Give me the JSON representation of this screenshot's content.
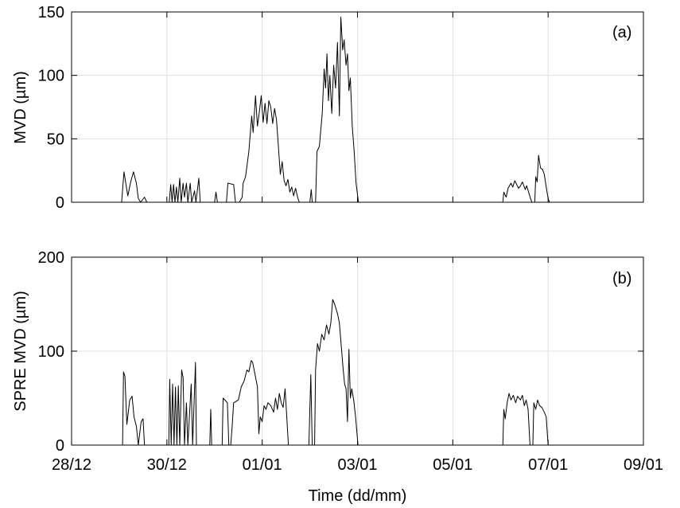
{
  "chart_data": [
    {
      "type": "line",
      "panel_label": "(a)",
      "ylabel": "MVD (µm)",
      "ylim": [
        0,
        150
      ],
      "yticks": [
        0,
        50,
        100,
        150
      ],
      "xlim": [
        "28/12",
        "09/01"
      ],
      "xticks": [
        "28/12",
        "30/12",
        "01/01",
        "03/01",
        "05/01",
        "07/01",
        "09/01"
      ],
      "grid": true,
      "series": [
        {
          "x_unit": "days since 28/12 00:00",
          "points": [
            [
              0.0,
              0
            ],
            [
              1.05,
              0
            ],
            [
              1.1,
              24
            ],
            [
              1.18,
              5
            ],
            [
              1.24,
              16
            ],
            [
              1.3,
              24
            ],
            [
              1.36,
              15
            ],
            [
              1.4,
              3
            ],
            [
              1.45,
              0
            ],
            [
              1.53,
              4
            ],
            [
              1.58,
              0
            ],
            [
              2.05,
              0
            ],
            [
              2.08,
              14
            ],
            [
              2.11,
              0
            ],
            [
              2.14,
              14
            ],
            [
              2.17,
              0
            ],
            [
              2.2,
              12
            ],
            [
              2.23,
              0
            ],
            [
              2.27,
              19
            ],
            [
              2.3,
              0
            ],
            [
              2.34,
              15
            ],
            [
              2.37,
              4
            ],
            [
              2.41,
              15
            ],
            [
              2.44,
              0
            ],
            [
              2.49,
              15
            ],
            [
              2.52,
              0
            ],
            [
              2.58,
              9
            ],
            [
              2.61,
              0
            ],
            [
              2.67,
              19
            ],
            [
              2.7,
              0
            ],
            [
              3.0,
              0
            ],
            [
              3.03,
              8
            ],
            [
              3.06,
              0
            ],
            [
              3.25,
              0
            ],
            [
              3.28,
              15
            ],
            [
              3.4,
              14
            ],
            [
              3.44,
              0
            ],
            [
              3.52,
              0
            ],
            [
              3.58,
              4
            ],
            [
              3.6,
              15
            ],
            [
              3.65,
              20
            ],
            [
              3.72,
              40
            ],
            [
              3.78,
              68
            ],
            [
              3.81,
              55
            ],
            [
              3.86,
              84
            ],
            [
              3.9,
              60
            ],
            [
              3.94,
              71
            ],
            [
              3.98,
              84
            ],
            [
              4.02,
              63
            ],
            [
              4.06,
              78
            ],
            [
              4.1,
              62
            ],
            [
              4.14,
              80
            ],
            [
              4.18,
              75
            ],
            [
              4.22,
              62
            ],
            [
              4.26,
              74
            ],
            [
              4.3,
              65
            ],
            [
              4.34,
              44
            ],
            [
              4.38,
              22
            ],
            [
              4.42,
              32
            ],
            [
              4.46,
              17
            ],
            [
              4.5,
              13
            ],
            [
              4.54,
              18
            ],
            [
              4.58,
              8
            ],
            [
              4.62,
              12
            ],
            [
              4.66,
              5
            ],
            [
              4.7,
              11
            ],
            [
              4.75,
              3
            ],
            [
              4.78,
              0
            ],
            [
              5.0,
              0
            ],
            [
              5.03,
              10
            ],
            [
              5.05,
              0
            ],
            [
              5.12,
              0
            ],
            [
              5.15,
              40
            ],
            [
              5.2,
              44
            ],
            [
              5.26,
              70
            ],
            [
              5.3,
              105
            ],
            [
              5.33,
              90
            ],
            [
              5.36,
              117
            ],
            [
              5.39,
              80
            ],
            [
              5.42,
              100
            ],
            [
              5.46,
              70
            ],
            [
              5.5,
              108
            ],
            [
              5.54,
              90
            ],
            [
              5.58,
              126
            ],
            [
              5.62,
              68
            ],
            [
              5.65,
              146
            ],
            [
              5.69,
              120
            ],
            [
              5.72,
              128
            ],
            [
              5.76,
              108
            ],
            [
              5.79,
              117
            ],
            [
              5.82,
              88
            ],
            [
              5.85,
              98
            ],
            [
              5.89,
              60
            ],
            [
              5.93,
              40
            ],
            [
              5.97,
              15
            ],
            [
              6.02,
              0
            ],
            [
              9.05,
              0
            ],
            [
              9.07,
              8
            ],
            [
              9.12,
              4
            ],
            [
              9.16,
              11
            ],
            [
              9.22,
              15
            ],
            [
              9.26,
              12
            ],
            [
              9.3,
              17
            ],
            [
              9.34,
              14
            ],
            [
              9.38,
              11
            ],
            [
              9.42,
              13
            ],
            [
              9.46,
              16
            ],
            [
              9.5,
              12
            ],
            [
              9.52,
              10
            ],
            [
              9.55,
              13
            ],
            [
              9.59,
              8
            ],
            [
              9.63,
              3
            ],
            [
              9.66,
              0
            ],
            [
              9.72,
              0
            ],
            [
              9.74,
              20
            ],
            [
              9.77,
              16
            ],
            [
              9.8,
              37
            ],
            [
              9.84,
              27
            ],
            [
              9.88,
              26
            ],
            [
              9.92,
              22
            ],
            [
              9.96,
              12
            ],
            [
              10.0,
              3
            ],
            [
              10.03,
              0
            ],
            [
              11.0,
              0
            ]
          ]
        }
      ]
    },
    {
      "type": "line",
      "panel_label": "(b)",
      "ylabel": "SPRE MVD (µm)",
      "xlabel": "Time (dd/mm)",
      "ylim": [
        0,
        200
      ],
      "yticks": [
        0,
        100,
        200
      ],
      "xlim": [
        "28/12",
        "09/01"
      ],
      "xticks": [
        "28/12",
        "30/12",
        "01/01",
        "03/01",
        "05/01",
        "07/01",
        "09/01"
      ],
      "grid": true,
      "series": [
        {
          "x_unit": "days since 28/12 00:00",
          "points": [
            [
              0.0,
              0
            ],
            [
              1.07,
              0
            ],
            [
              1.09,
              78
            ],
            [
              1.12,
              73
            ],
            [
              1.16,
              22
            ],
            [
              1.22,
              48
            ],
            [
              1.27,
              52
            ],
            [
              1.31,
              30
            ],
            [
              1.36,
              20
            ],
            [
              1.4,
              0
            ],
            [
              1.46,
              25
            ],
            [
              1.5,
              28
            ],
            [
              1.53,
              0
            ],
            [
              2.04,
              0
            ],
            [
              2.06,
              70
            ],
            [
              2.09,
              0
            ],
            [
              2.12,
              65
            ],
            [
              2.15,
              0
            ],
            [
              2.18,
              62
            ],
            [
              2.21,
              0
            ],
            [
              2.24,
              63
            ],
            [
              2.27,
              0
            ],
            [
              2.31,
              80
            ],
            [
              2.34,
              72
            ],
            [
              2.37,
              0
            ],
            [
              2.41,
              45
            ],
            [
              2.44,
              0
            ],
            [
              2.51,
              65
            ],
            [
              2.54,
              0
            ],
            [
              2.6,
              88
            ],
            [
              2.62,
              0
            ],
            [
              2.9,
              0
            ],
            [
              2.92,
              38
            ],
            [
              2.94,
              0
            ],
            [
              3.16,
              0
            ],
            [
              3.18,
              50
            ],
            [
              3.27,
              45
            ],
            [
              3.3,
              0
            ],
            [
              3.34,
              0
            ],
            [
              3.37,
              20
            ],
            [
              3.4,
              45
            ],
            [
              3.5,
              48
            ],
            [
              3.56,
              62
            ],
            [
              3.62,
              68
            ],
            [
              3.68,
              80
            ],
            [
              3.72,
              78
            ],
            [
              3.77,
              90
            ],
            [
              3.8,
              88
            ],
            [
              3.85,
              75
            ],
            [
              3.9,
              62
            ],
            [
              3.93,
              12
            ],
            [
              3.96,
              30
            ],
            [
              4.0,
              25
            ],
            [
              4.04,
              42
            ],
            [
              4.08,
              38
            ],
            [
              4.12,
              45
            ],
            [
              4.18,
              42
            ],
            [
              4.24,
              35
            ],
            [
              4.28,
              50
            ],
            [
              4.32,
              38
            ],
            [
              4.36,
              55
            ],
            [
              4.4,
              45
            ],
            [
              4.44,
              40
            ],
            [
              4.48,
              60
            ],
            [
              4.51,
              35
            ],
            [
              4.55,
              0
            ],
            [
              4.95,
              0
            ],
            [
              4.98,
              0
            ],
            [
              5.02,
              75
            ],
            [
              5.05,
              0
            ],
            [
              5.1,
              0
            ],
            [
              5.12,
              80
            ],
            [
              5.16,
              108
            ],
            [
              5.2,
              100
            ],
            [
              5.25,
              118
            ],
            [
              5.3,
              112
            ],
            [
              5.35,
              128
            ],
            [
              5.4,
              118
            ],
            [
              5.44,
              130
            ],
            [
              5.48,
              155
            ],
            [
              5.52,
              150
            ],
            [
              5.58,
              140
            ],
            [
              5.62,
              130
            ],
            [
              5.66,
              105
            ],
            [
              5.7,
              80
            ],
            [
              5.73,
              65
            ],
            [
              5.76,
              60
            ],
            [
              5.79,
              25
            ],
            [
              5.82,
              102
            ],
            [
              5.85,
              50
            ],
            [
              5.88,
              60
            ],
            [
              5.92,
              48
            ],
            [
              5.96,
              30
            ],
            [
              6.01,
              0
            ],
            [
              9.05,
              0
            ],
            [
              9.07,
              38
            ],
            [
              9.1,
              28
            ],
            [
              9.14,
              45
            ],
            [
              9.18,
              55
            ],
            [
              9.22,
              48
            ],
            [
              9.27,
              53
            ],
            [
              9.32,
              45
            ],
            [
              9.36,
              52
            ],
            [
              9.42,
              48
            ],
            [
              9.46,
              53
            ],
            [
              9.5,
              42
            ],
            [
              9.54,
              48
            ],
            [
              9.58,
              38
            ],
            [
              9.62,
              0
            ],
            [
              9.68,
              0
            ],
            [
              9.7,
              45
            ],
            [
              9.74,
              38
            ],
            [
              9.78,
              48
            ],
            [
              9.82,
              42
            ],
            [
              9.87,
              40
            ],
            [
              9.92,
              35
            ],
            [
              9.96,
              30
            ],
            [
              10.0,
              0
            ],
            [
              11.0,
              0
            ]
          ]
        }
      ]
    }
  ]
}
